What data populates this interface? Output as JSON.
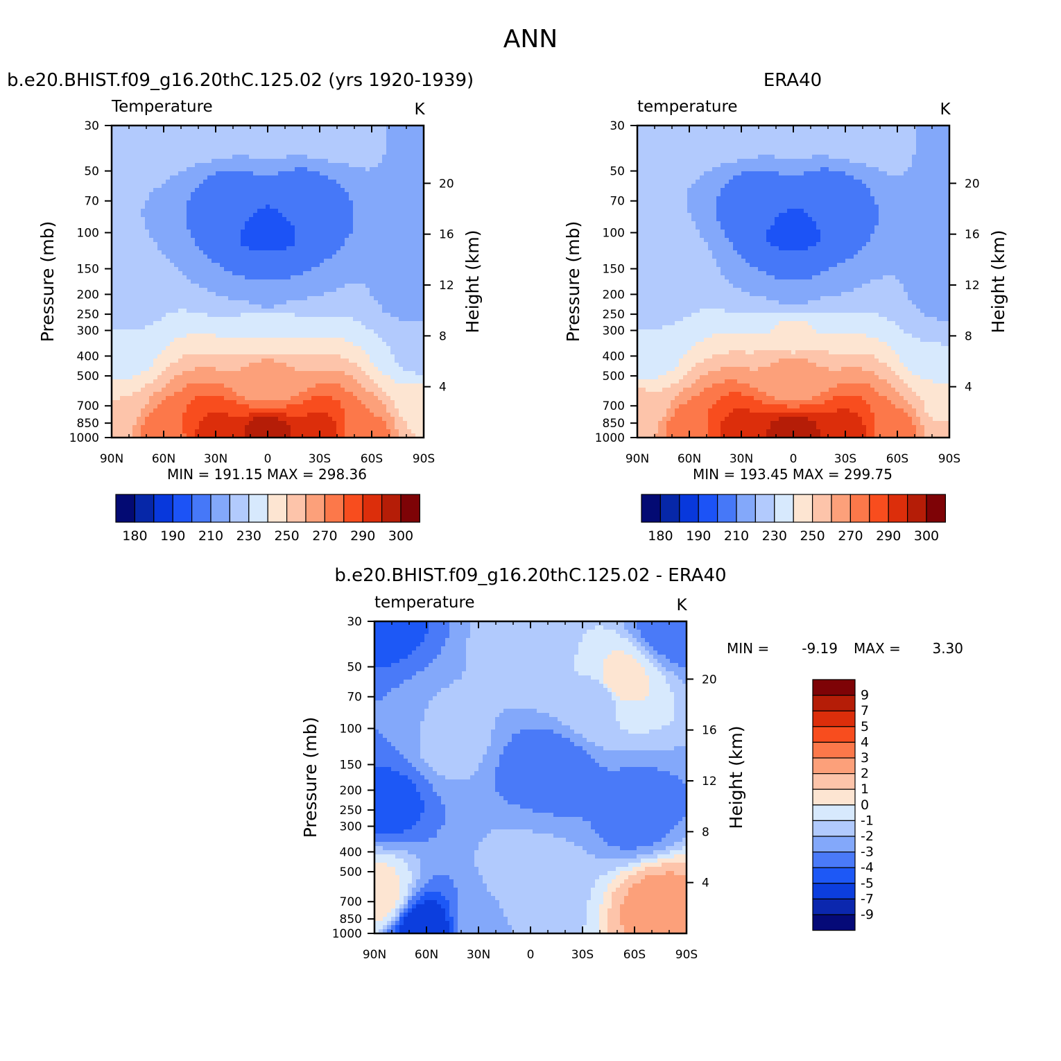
{
  "figure_title": "ANN",
  "chart_data": [
    {
      "type": "heatmap",
      "title": "b.e20.BHIST.f09_g16.20thC.125.02 (yrs 1920-1939)",
      "field_label": "Temperature",
      "units": "K",
      "xlabel": "",
      "ylabel": "Pressure (mb)",
      "y2label": "Height (km)",
      "x_ticks": [
        "90N",
        "60N",
        "30N",
        "0",
        "30S",
        "60S",
        "90S"
      ],
      "y_ticks": [
        30,
        50,
        70,
        100,
        150,
        200,
        250,
        300,
        400,
        500,
        700,
        850,
        1000
      ],
      "y2_ticks": [
        4,
        8,
        12,
        16,
        20
      ],
      "ylim": [
        1000,
        30
      ],
      "y_scale": "log",
      "stats_text": "MIN = 191.15   MAX = 298.36",
      "min": 191.15,
      "max": 298.36,
      "legend": "bottom",
      "colorbar_labels": [
        "180",
        "190",
        "210",
        "230",
        "250",
        "270",
        "290",
        "300"
      ],
      "field_points": [
        {
          "lat": 90,
          "p": 30,
          "v": 223
        },
        {
          "lat": 60,
          "p": 30,
          "v": 224
        },
        {
          "lat": 30,
          "p": 30,
          "v": 225
        },
        {
          "lat": 0,
          "p": 30,
          "v": 225
        },
        {
          "lat": -30,
          "p": 30,
          "v": 225
        },
        {
          "lat": -60,
          "p": 30,
          "v": 224
        },
        {
          "lat": -80,
          "p": 30,
          "v": 215
        },
        {
          "lat": -90,
          "p": 30,
          "v": 212
        },
        {
          "lat": 20,
          "p": 70,
          "v": 206
        },
        {
          "lat": 0,
          "p": 100,
          "v": 195
        },
        {
          "lat": -20,
          "p": 70,
          "v": 205
        },
        {
          "lat": 0,
          "p": 150,
          "v": 205
        },
        {
          "lat": 90,
          "p": 200,
          "v": 222
        },
        {
          "lat": 0,
          "p": 200,
          "v": 218
        },
        {
          "lat": -90,
          "p": 200,
          "v": 215
        },
        {
          "lat": 90,
          "p": 400,
          "v": 232
        },
        {
          "lat": 0,
          "p": 300,
          "v": 240
        },
        {
          "lat": -90,
          "p": 400,
          "v": 228
        },
        {
          "lat": 90,
          "p": 700,
          "v": 250
        },
        {
          "lat": 0,
          "p": 500,
          "v": 262
        },
        {
          "lat": -90,
          "p": 700,
          "v": 245
        },
        {
          "lat": 90,
          "p": 1000,
          "v": 258
        },
        {
          "lat": 60,
          "p": 1000,
          "v": 278
        },
        {
          "lat": 30,
          "p": 1000,
          "v": 292
        },
        {
          "lat": 0,
          "p": 1000,
          "v": 298
        },
        {
          "lat": -30,
          "p": 1000,
          "v": 292
        },
        {
          "lat": -60,
          "p": 1000,
          "v": 272
        },
        {
          "lat": -90,
          "p": 1000,
          "v": 250
        }
      ]
    },
    {
      "type": "heatmap",
      "title": "ERA40",
      "field_label": "temperature",
      "units": "K",
      "xlabel": "",
      "ylabel": "Pressure (mb)",
      "y2label": "Height (km)",
      "x_ticks": [
        "90N",
        "60N",
        "30N",
        "0",
        "30S",
        "60S",
        "90S"
      ],
      "y_ticks": [
        30,
        50,
        70,
        100,
        150,
        200,
        250,
        300,
        400,
        500,
        700,
        850,
        1000
      ],
      "y2_ticks": [
        4,
        8,
        12,
        16,
        20
      ],
      "ylim": [
        1000,
        30
      ],
      "y_scale": "log",
      "stats_text": "MIN = 193.45   MAX = 299.75",
      "min": 193.45,
      "max": 299.75,
      "legend": "bottom",
      "colorbar_labels": [
        "180",
        "190",
        "210",
        "230",
        "250",
        "270",
        "290",
        "300"
      ],
      "field_points": [
        {
          "lat": 90,
          "p": 30,
          "v": 223
        },
        {
          "lat": 60,
          "p": 30,
          "v": 224
        },
        {
          "lat": 30,
          "p": 30,
          "v": 225
        },
        {
          "lat": 0,
          "p": 30,
          "v": 225
        },
        {
          "lat": -30,
          "p": 30,
          "v": 225
        },
        {
          "lat": -60,
          "p": 30,
          "v": 226
        },
        {
          "lat": -80,
          "p": 30,
          "v": 216
        },
        {
          "lat": -90,
          "p": 30,
          "v": 212
        },
        {
          "lat": 20,
          "p": 70,
          "v": 206
        },
        {
          "lat": 0,
          "p": 100,
          "v": 196
        },
        {
          "lat": -20,
          "p": 70,
          "v": 205
        },
        {
          "lat": 0,
          "p": 150,
          "v": 206
        },
        {
          "lat": 80,
          "p": 150,
          "v": 228
        },
        {
          "lat": 90,
          "p": 200,
          "v": 224
        },
        {
          "lat": 0,
          "p": 200,
          "v": 219
        },
        {
          "lat": -90,
          "p": 200,
          "v": 217
        },
        {
          "lat": 90,
          "p": 400,
          "v": 232
        },
        {
          "lat": 0,
          "p": 300,
          "v": 241
        },
        {
          "lat": -90,
          "p": 400,
          "v": 230
        },
        {
          "lat": 90,
          "p": 700,
          "v": 251
        },
        {
          "lat": 0,
          "p": 500,
          "v": 263
        },
        {
          "lat": -90,
          "p": 700,
          "v": 247
        },
        {
          "lat": 90,
          "p": 1000,
          "v": 259
        },
        {
          "lat": 60,
          "p": 1000,
          "v": 279
        },
        {
          "lat": 30,
          "p": 1000,
          "v": 293
        },
        {
          "lat": 0,
          "p": 1000,
          "v": 299
        },
        {
          "lat": -30,
          "p": 1000,
          "v": 293
        },
        {
          "lat": -60,
          "p": 1000,
          "v": 274
        },
        {
          "lat": -90,
          "p": 1000,
          "v": 252
        }
      ]
    },
    {
      "type": "heatmap",
      "title": "b.e20.BHIST.f09_g16.20thC.125.02 - ERA40",
      "field_label": "temperature",
      "units": "K",
      "xlabel": "",
      "ylabel": "Pressure (mb)",
      "y2label": "Height (km)",
      "x_ticks": [
        "90N",
        "60N",
        "30N",
        "0",
        "30S",
        "60S",
        "90S"
      ],
      "y_ticks": [
        30,
        50,
        70,
        100,
        150,
        200,
        250,
        300,
        400,
        500,
        700,
        850,
        1000
      ],
      "y2_ticks": [
        4,
        8,
        12,
        16,
        20
      ],
      "ylim": [
        1000,
        30
      ],
      "y_scale": "log",
      "stats_min_label": "MIN =",
      "stats_min_value": "-9.19",
      "stats_max_label": "MAX =",
      "stats_max_value": "3.30",
      "min": -9.19,
      "max": 3.3,
      "legend": "right",
      "colorbar_labels": [
        "9",
        "7",
        "5",
        "4",
        "3",
        "2",
        "1",
        "0",
        "-1",
        "-2",
        "-3",
        "-4",
        "-5",
        "-7",
        "-9"
      ],
      "field_points": [
        {
          "lat": 0,
          "p": 400,
          "v": -2
        },
        {
          "lat": 0,
          "p": 700,
          "v": -1.5
        },
        {
          "lat": 90,
          "p": 30,
          "v": -4.5
        },
        {
          "lat": 80,
          "p": 100,
          "v": -3
        },
        {
          "lat": 85,
          "p": 220,
          "v": -4.5
        },
        {
          "lat": 90,
          "p": 650,
          "v": 0.5
        },
        {
          "lat": 50,
          "p": 110,
          "v": -1.5
        },
        {
          "lat": 0,
          "p": 40,
          "v": -1.5
        },
        {
          "lat": -40,
          "p": 70,
          "v": -1.5
        },
        {
          "lat": -50,
          "p": 60,
          "v": 0.5
        },
        {
          "lat": -10,
          "p": 170,
          "v": -4
        },
        {
          "lat": -60,
          "p": 260,
          "v": -3.5
        },
        {
          "lat": -85,
          "p": 30,
          "v": -4
        },
        {
          "lat": -75,
          "p": 750,
          "v": 2.5
        },
        {
          "lat": 0,
          "p": 550,
          "v": -1
        },
        {
          "lat": 60,
          "p": 990,
          "v": -6
        },
        {
          "lat": 30,
          "p": 900,
          "v": -2.5
        }
      ]
    }
  ]
}
